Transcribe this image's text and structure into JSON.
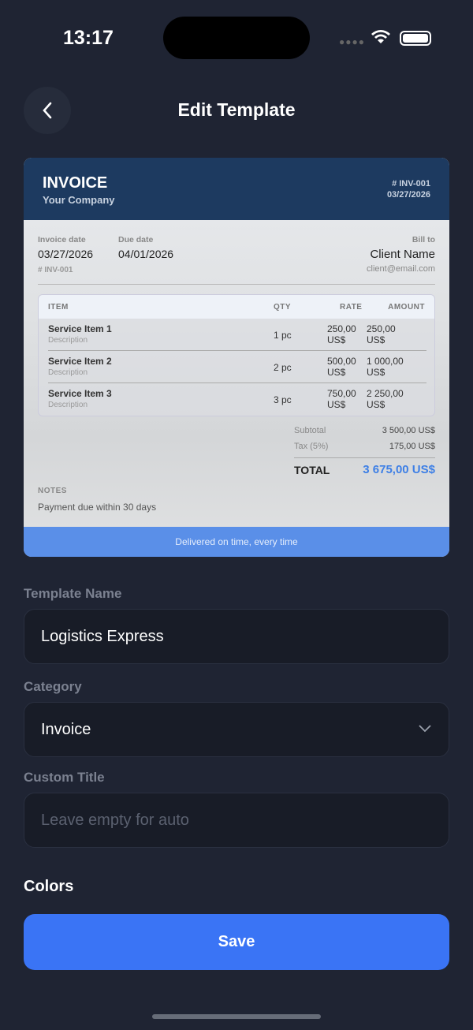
{
  "status": {
    "time": "13:17"
  },
  "header": {
    "title": "Edit Template"
  },
  "invoice": {
    "title": "INVOICE",
    "company": "Your Company",
    "number": "# INV-001",
    "date": "03/27/2026",
    "invoice_date_label": "Invoice date",
    "invoice_date": "03/27/2026",
    "due_date_label": "Due date",
    "due_date": "04/01/2026",
    "sub_number": "# INV-001",
    "bill_to_label": "Bill to",
    "client_name": "Client Name",
    "client_email": "client@email.com",
    "columns": {
      "item": "ITEM",
      "qty": "QTY",
      "rate": "RATE",
      "amount": "AMOUNT"
    },
    "items": [
      {
        "name": "Service Item 1",
        "desc": "Description",
        "qty": "1 pc",
        "rate": "250,00",
        "rate_cur": "US$",
        "amount": "250,00",
        "amount_cur": "US$"
      },
      {
        "name": "Service Item 2",
        "desc": "Description",
        "qty": "2 pc",
        "rate": "500,00",
        "rate_cur": "US$",
        "amount": "1 000,00",
        "amount_cur": "US$"
      },
      {
        "name": "Service Item 3",
        "desc": "Description",
        "qty": "3 pc",
        "rate": "750,00",
        "rate_cur": "US$",
        "amount": "2 250,00",
        "amount_cur": "US$"
      }
    ],
    "subtotal_label": "Subtotal",
    "subtotal": "3 500,00 US$",
    "tax_label": "Tax (5%)",
    "tax": "175,00 US$",
    "total_label": "TOTAL",
    "total": "3 675,00 US$",
    "notes_label": "NOTES",
    "notes": "Payment due within 30 days",
    "footer": "Delivered on time, every time",
    "colors": {
      "header": "#1d3a60",
      "accent": "#5a8fe8",
      "total": "#3d7fe6"
    }
  },
  "form": {
    "name_label": "Template Name",
    "name_value": "Logistics Express",
    "category_label": "Category",
    "category_value": "Invoice",
    "custom_title_label": "Custom Title",
    "custom_title_placeholder": "Leave empty for auto",
    "colors_label": "Colors",
    "save_label": "Save"
  }
}
